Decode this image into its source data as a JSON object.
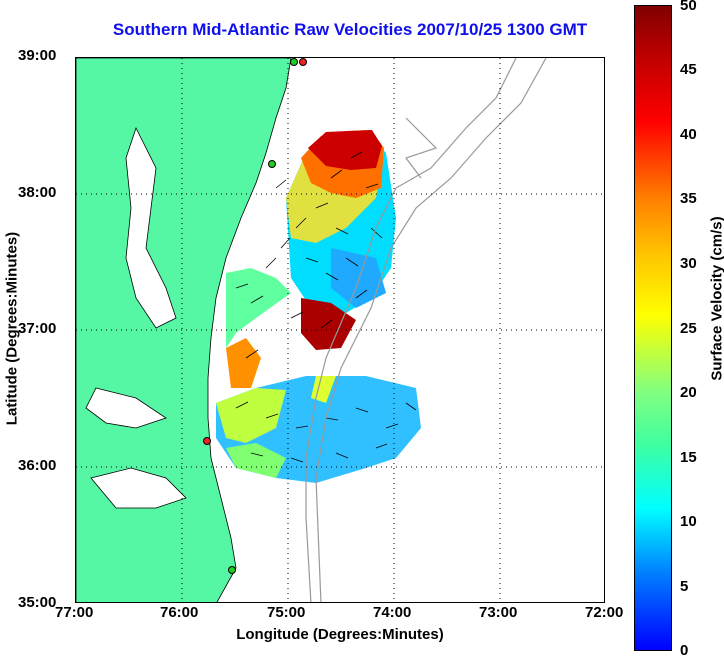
{
  "title": "Southern Mid-Atlantic Raw Velocities 2007/10/25 1300 GMT",
  "x_axis": {
    "label": "Longitude (Degrees:Minutes)",
    "ticks": [
      "77:00",
      "76:00",
      "75:00",
      "74:00",
      "73:00",
      "72:00"
    ]
  },
  "y_axis": {
    "label": "Latitude (Degrees:Minutes)",
    "ticks": [
      "39:00",
      "38:00",
      "37:00",
      "36:00",
      "35:00"
    ]
  },
  "colorbar": {
    "label": "Surface Velocity (cm/s)",
    "ticks": [
      "50",
      "45",
      "40",
      "35",
      "30",
      "25",
      "20",
      "15",
      "10",
      "5",
      "0"
    ],
    "range": [
      0,
      50
    ]
  },
  "colors": {
    "land": "#55f7a4",
    "title": "#1010ee",
    "stations_green": "#22cc22",
    "stations_red": "#ee2222"
  }
}
